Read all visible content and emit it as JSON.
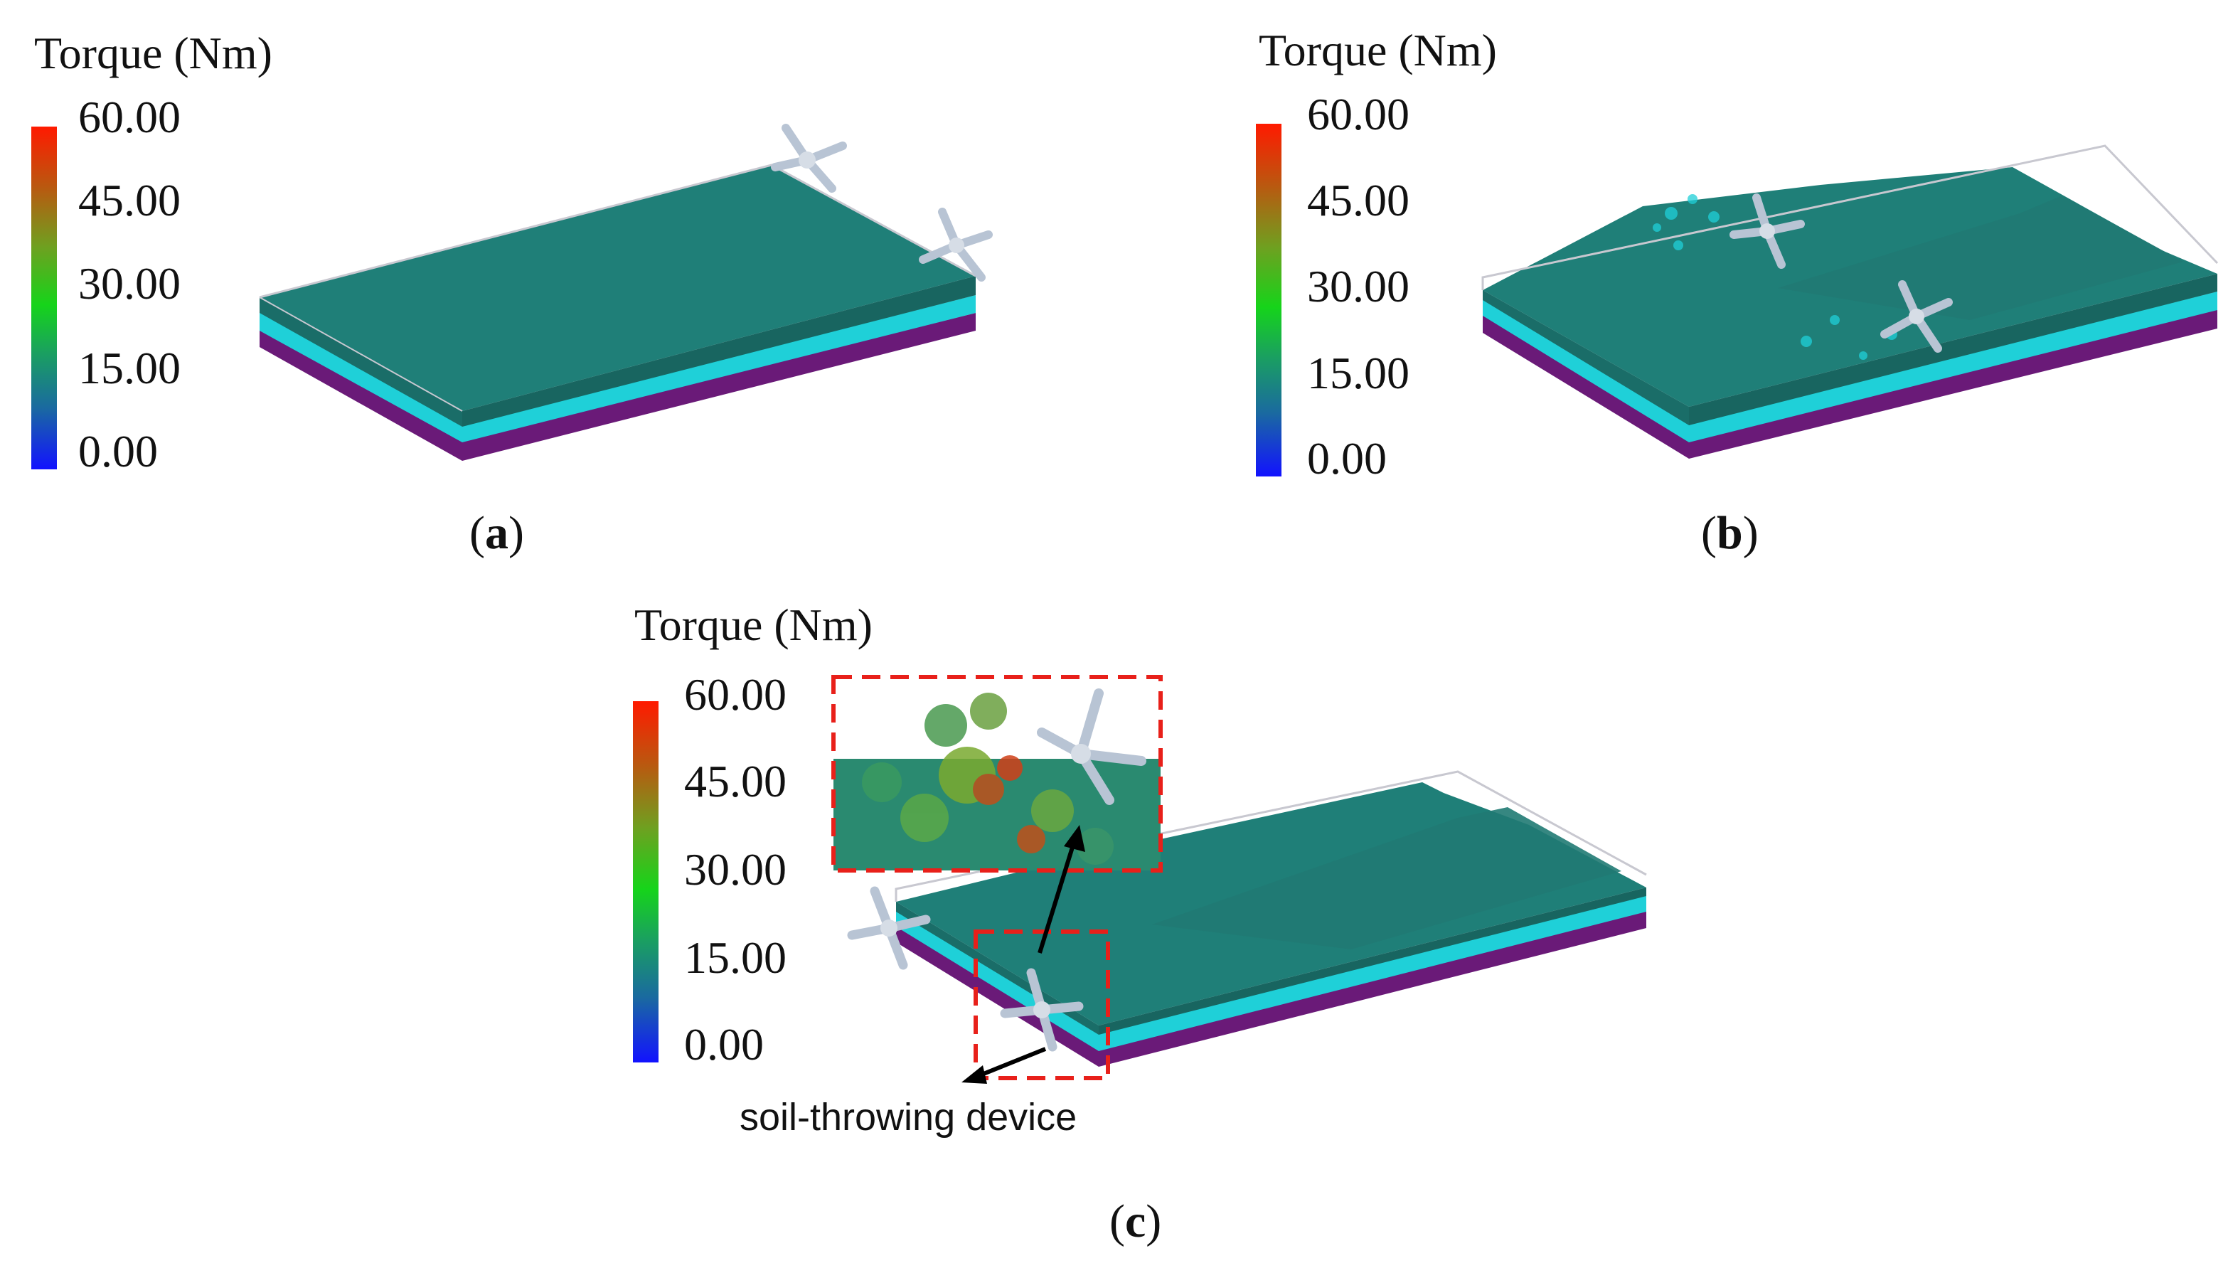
{
  "panels": [
    {
      "id": "a",
      "legend_title": "Torque (Nm)",
      "ticks": [
        "60.00",
        "45.00",
        "30.00",
        "15.00",
        "0.00"
      ],
      "caption_open": "(",
      "caption_letter": "a",
      "caption_close": ")"
    },
    {
      "id": "b",
      "legend_title": "Torque (Nm)",
      "ticks": [
        "60.00",
        "45.00",
        "30.00",
        "15.00",
        "0.00"
      ],
      "caption_open": "(",
      "caption_letter": "b",
      "caption_close": ")"
    },
    {
      "id": "c",
      "legend_title": "Torque (Nm)",
      "ticks": [
        "60.00",
        "45.00",
        "30.00",
        "15.00",
        "0.00"
      ],
      "caption_open": "(",
      "caption_letter": "c",
      "caption_close": ")",
      "annotation": "soil-throwing device"
    }
  ],
  "colors": {
    "soil_surface": "#1f7f78",
    "soil_middle": "#1fd0d8",
    "soil_bottom": "#6a1a78",
    "blade": "#b8c4d4",
    "zoom_box": "#e8201a",
    "colorbar_top": "#ff1a00",
    "colorbar_mid": "#16d41a",
    "colorbar_bottom": "#1212ff"
  },
  "colorbar": {
    "min": 0,
    "max": 60
  }
}
